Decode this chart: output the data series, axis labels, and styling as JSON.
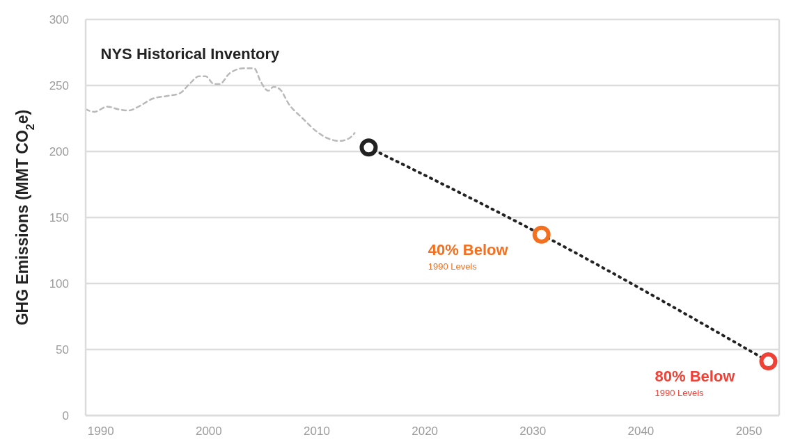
{
  "chart_data": {
    "type": "line",
    "ylabel": "GHG Emissions (MMT CO$_{2}$e)",
    "xlim": [
      1988.6,
      2052.8
    ],
    "xticks": [
      1990,
      2000,
      2010,
      2020,
      2030,
      2040,
      2050
    ],
    "ylim": [
      0,
      300
    ],
    "yticks": [
      0,
      50,
      100,
      150,
      200,
      250,
      300
    ],
    "grid": "y",
    "series": [
      {
        "name": "NYS Historical Inventory",
        "color": "#b9b9b9",
        "line_style": "dashed",
        "marker": "none",
        "x": [
          1988.6,
          1989.4,
          1990.6,
          1991.6,
          1992.6,
          1993.5,
          1994.8,
          1996.1,
          1997.3,
          1998.2,
          1999.1,
          1999.7,
          2000.5,
          2001,
          2001.9,
          2003.2,
          2004.2,
          2004.8,
          2005.5,
          2006,
          2006.6,
          2007.4,
          2008.7,
          2010,
          2011,
          2012.1,
          2013,
          2013.5
        ],
        "values": [
          232,
          230,
          234,
          232,
          231,
          234,
          240,
          242,
          244,
          251,
          257,
          257,
          251,
          251,
          259,
          263,
          263,
          253,
          246,
          249,
          247,
          236,
          225,
          215,
          210,
          208,
          210,
          214
        ]
      },
      {
        "color": "#222222",
        "line_style": "dotted",
        "marker": "circle",
        "x": [
          2014.8,
          2030.8,
          2051.8
        ],
        "values": [
          203,
          137,
          41
        ],
        "colors": [
          "#222222",
          "#f37021",
          "#ef4136"
        ]
      }
    ],
    "annotations": [
      "40% Below",
      "1990 Levels",
      "80% Below",
      "1990 Levels"
    ]
  }
}
